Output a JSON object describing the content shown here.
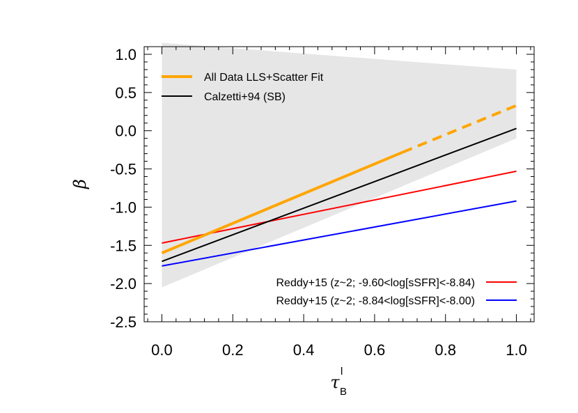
{
  "chart_data": {
    "type": "line",
    "xlabel": "τ",
    "xlabel_sup": "l",
    "xlabel_sub": "B",
    "ylabel": "β",
    "xlim": [
      -0.05,
      1.05
    ],
    "ylim": [
      -2.5,
      1.1
    ],
    "x_ticks": [
      0.0,
      0.2,
      0.4,
      0.6,
      0.8,
      1.0
    ],
    "x_tick_labels": [
      "0.0",
      "0.2",
      "0.4",
      "0.6",
      "0.8",
      "1.0"
    ],
    "y_ticks": [
      1.0,
      0.5,
      0.0,
      -0.5,
      -1.0,
      -1.5,
      -2.0,
      -2.5
    ],
    "y_tick_labels": [
      "1.0",
      "0.5",
      "0.0",
      "-0.5",
      "-1.0",
      "-1.5",
      "-2.0",
      "-2.5"
    ],
    "band": {
      "x": [
        0.0,
        1.0
      ],
      "lower": [
        -2.05,
        -0.1
      ],
      "upper": [
        1.15,
        0.8
      ],
      "color": "#e6e6e6"
    },
    "series": [
      {
        "name": "All Data LLS+Scatter Fit",
        "x": [
          0.0,
          0.68
        ],
        "y": [
          -1.6,
          -0.28
        ],
        "dashed_x": [
          0.68,
          1.0
        ],
        "dashed_y": [
          -0.28,
          0.33
        ],
        "color": "#ffa500"
      },
      {
        "name": "Calzetti+94 (SB)",
        "x": [
          0.0,
          1.0
        ],
        "y": [
          -1.71,
          0.03
        ],
        "color": "#000000"
      },
      {
        "name": "Reddy+15 (z~2; -9.60<log[sSFR]<-8.84)",
        "x": [
          0.0,
          1.0
        ],
        "y": [
          -1.47,
          -0.53
        ],
        "color": "#ff0000"
      },
      {
        "name": "Reddy+15 (z~2; -8.84<log[sSFR]<-8.00)",
        "x": [
          0.0,
          1.0
        ],
        "y": [
          -1.77,
          -0.92
        ],
        "color": "#0000ff"
      }
    ],
    "legend_placement": [
      "top-left",
      "top-left",
      "bottom-right",
      "bottom-right"
    ],
    "grid": false
  }
}
